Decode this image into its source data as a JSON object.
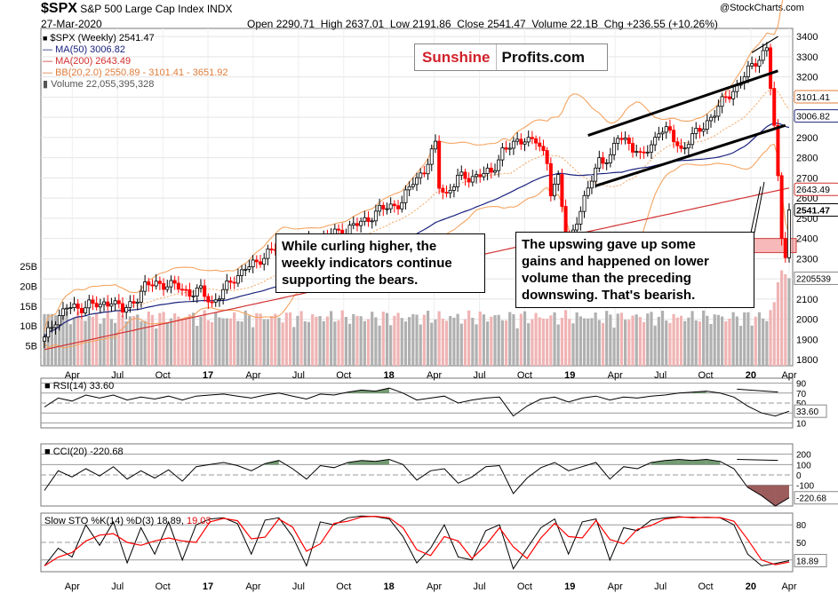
{
  "header": {
    "ticker": "$SPX",
    "name": "S&P 500 Large Cap Index",
    "exchange": "INDX",
    "date": "27-Mar-2020",
    "open_label": "Open",
    "open": "2290.71",
    "high_label": "High",
    "high": "2637.01",
    "low_label": "Low",
    "low": "2191.86",
    "close_label": "Close",
    "close": "2541.47",
    "volume_label": "Volume",
    "volume": "22.1B",
    "chg_label": "Chg",
    "chg": "+236.55 (+10.26%)",
    "copyright": "@StockCharts.com"
  },
  "brand": {
    "part1": "Sunshine",
    "part2": "Profits.com"
  },
  "legend": {
    "price": "$SPX (Weekly) 2541.47",
    "ma50": "MA(50) 3006.82",
    "ma200": "MA(200) 2643.49",
    "bb": "BB(20,2.0) 2550.89 - 3101.41 - 3651.92",
    "volume": "Volume 22,055,395,328"
  },
  "callouts": {
    "left": [
      "While curling higher, the",
      "weekly indicators continue",
      "supporting the bears."
    ],
    "right": [
      "The upswing gave up some",
      "gains and happened on lower",
      "volume than the preceding",
      "downswing. That's bearish."
    ]
  },
  "colors": {
    "up": "#000000",
    "down": "#ff0000",
    "ma50": "#1a237e",
    "ma200": "#d32f2f",
    "bb": "#f4a460",
    "volume_up": "#b0b0b0",
    "volume_down": "#f0b4b4",
    "osc_green": "#5a8a5a",
    "osc_red": "#8b4040",
    "support_zone": "#f08080"
  },
  "chart_data": [
    {
      "type": "candlestick",
      "title": "$SPX (Weekly)",
      "yticks": [
        1800,
        1900,
        2000,
        2100,
        2200,
        2300,
        2400,
        2500,
        2600,
        2700,
        2800,
        2900,
        3000,
        3100,
        3200,
        3300,
        3400
      ],
      "ylim": [
        1770,
        3440
      ],
      "volume_ticks": [
        "5B",
        "10B",
        "15B",
        "20B",
        "25B"
      ],
      "xticks": [
        "Apr",
        "Jul",
        "Oct",
        "17",
        "Apr",
        "Jul",
        "Oct",
        "18",
        "Apr",
        "Jul",
        "Oct",
        "19",
        "Apr",
        "Jul",
        "Oct",
        "20",
        "Apr"
      ],
      "last_values": {
        "bb_upper": "3101.41",
        "ma50": "3006.82",
        "ma200": "2643.49",
        "close": "2541.47",
        "volume": "22055395328"
      },
      "close_path": [
        [
          0,
          1900
        ],
        [
          3,
          2000
        ],
        [
          6,
          2060
        ],
        [
          9,
          2050
        ],
        [
          12,
          2080
        ],
        [
          15,
          2060
        ],
        [
          18,
          2100
        ],
        [
          21,
          2040
        ],
        [
          24,
          2090
        ],
        [
          27,
          2160
        ],
        [
          30,
          2180
        ],
        [
          33,
          2170
        ],
        [
          36,
          2160
        ],
        [
          39,
          2130
        ],
        [
          42,
          2140
        ],
        [
          45,
          2080
        ],
        [
          48,
          2140
        ],
        [
          51,
          2200
        ],
        [
          54,
          2260
        ],
        [
          57,
          2270
        ],
        [
          60,
          2340
        ],
        [
          63,
          2360
        ],
        [
          66,
          2340
        ],
        [
          69,
          2360
        ],
        [
          72,
          2390
        ],
        [
          75,
          2400
        ],
        [
          78,
          2430
        ],
        [
          81,
          2440
        ],
        [
          84,
          2470
        ],
        [
          87,
          2500
        ],
        [
          90,
          2540
        ],
        [
          93,
          2560
        ],
        [
          96,
          2580
        ],
        [
          99,
          2680
        ],
        [
          102,
          2740
        ],
        [
          105,
          2860
        ],
        [
          106,
          2660
        ],
        [
          108,
          2620
        ],
        [
          111,
          2700
        ],
        [
          114,
          2700
        ],
        [
          117,
          2720
        ],
        [
          120,
          2720
        ],
        [
          123,
          2840
        ],
        [
          126,
          2860
        ],
        [
          129,
          2900
        ],
        [
          132,
          2880
        ],
        [
          135,
          2780
        ],
        [
          136,
          2640
        ],
        [
          138,
          2700
        ],
        [
          140,
          2420
        ],
        [
          141,
          2380
        ],
        [
          143,
          2500
        ],
        [
          146,
          2640
        ],
        [
          149,
          2790
        ],
        [
          152,
          2800
        ],
        [
          154,
          2900
        ],
        [
          157,
          2880
        ],
        [
          160,
          2800
        ],
        [
          163,
          2860
        ],
        [
          165,
          2940
        ],
        [
          168,
          2920
        ],
        [
          171,
          2840
        ],
        [
          174,
          2900
        ],
        [
          177,
          2960
        ],
        [
          180,
          3020
        ],
        [
          183,
          3100
        ],
        [
          186,
          3150
        ],
        [
          189,
          3230
        ],
        [
          192,
          3300
        ],
        [
          194,
          3340
        ],
        [
          196,
          2960
        ],
        [
          197,
          2711
        ],
        [
          198,
          2400
        ],
        [
          199,
          2305
        ],
        [
          200,
          2541
        ]
      ]
    },
    {
      "type": "line",
      "title": "RSI(14)",
      "value": "33.60",
      "ylim": [
        0,
        100
      ],
      "levels": [
        10,
        30,
        50,
        70,
        90
      ],
      "y": [
        42,
        60,
        54,
        66,
        60,
        66,
        56,
        62,
        58,
        64,
        56,
        64,
        66,
        68,
        64,
        60,
        66,
        70,
        64,
        58,
        68,
        66,
        72,
        76,
        74,
        80,
        70,
        56,
        60,
        64,
        50,
        56,
        60,
        62,
        24,
        44,
        58,
        62,
        52,
        60,
        64,
        56,
        62,
        60,
        64,
        66,
        70,
        72,
        74,
        70,
        62,
        44,
        30,
        24,
        33.6
      ]
    },
    {
      "type": "line",
      "title": "CCI(20)",
      "value": "-220.68",
      "ylim": [
        -300,
        300
      ],
      "levels": [
        -100,
        0,
        100,
        200
      ],
      "y": [
        -150,
        40,
        -20,
        60,
        -10,
        80,
        -40,
        40,
        -30,
        50,
        -60,
        80,
        100,
        120,
        90,
        40,
        110,
        140,
        60,
        -40,
        90,
        70,
        120,
        140,
        130,
        150,
        100,
        -50,
        40,
        60,
        -80,
        -20,
        80,
        90,
        -180,
        -30,
        70,
        120,
        40,
        80,
        120,
        -40,
        80,
        60,
        120,
        140,
        150,
        140,
        150,
        130,
        60,
        -120,
        -200,
        -300,
        -220.68
      ]
    },
    {
      "type": "line",
      "title": "Slow STO %K(14) %D(3)",
      "k": "18.89",
      "d": "19.03",
      "ylim": [
        0,
        100
      ],
      "levels": [
        20,
        50,
        80
      ],
      "k_values": [
        10,
        40,
        25,
        80,
        45,
        85,
        15,
        75,
        30,
        85,
        20,
        80,
        90,
        92,
        82,
        30,
        88,
        92,
        60,
        10,
        85,
        80,
        92,
        95,
        94,
        90,
        60,
        15,
        40,
        80,
        25,
        20,
        70,
        80,
        5,
        40,
        75,
        90,
        30,
        85,
        90,
        20,
        75,
        70,
        88,
        92,
        94,
        92,
        93,
        92,
        80,
        30,
        10,
        14,
        18.89
      ]
    }
  ]
}
